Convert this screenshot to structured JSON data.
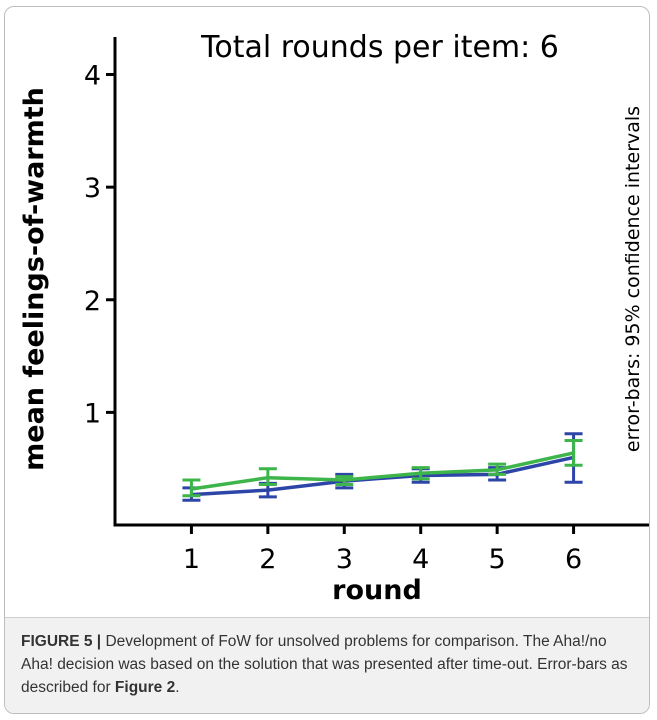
{
  "chart_data": {
    "type": "line",
    "annotation": "Total rounds per item: 6",
    "side_note": "error-bars: 95% confidence intervals",
    "xlabel": "round",
    "ylabel": "mean feelings-of-warmth",
    "x": [
      1,
      2,
      3,
      4,
      5,
      6
    ],
    "x_ticks": [
      "1",
      "2",
      "3",
      "4",
      "5",
      "6"
    ],
    "y_ticks": [
      "1",
      "2",
      "3",
      "4"
    ],
    "ylim": [
      0,
      4.2
    ],
    "xlim": [
      0,
      7
    ],
    "grid": false,
    "series": [
      {
        "color": "#2e45a8",
        "values": [
          0.27,
          0.31,
          0.39,
          0.44,
          0.45,
          0.6
        ],
        "ci_low": [
          0.22,
          0.25,
          0.33,
          0.38,
          0.4,
          0.38
        ],
        "ci_high": [
          0.33,
          0.37,
          0.45,
          0.5,
          0.51,
          0.81
        ]
      },
      {
        "color": "#3db54a",
        "values": [
          0.32,
          0.42,
          0.4,
          0.46,
          0.49,
          0.64
        ],
        "ci_low": [
          0.26,
          0.36,
          0.36,
          0.41,
          0.45,
          0.53
        ],
        "ci_high": [
          0.4,
          0.5,
          0.43,
          0.51,
          0.54,
          0.75
        ]
      }
    ]
  },
  "caption": {
    "label": "FIGURE 5 |",
    "text": " Development of FoW for unsolved problems for comparison. The Aha!/no Aha! decision was based on the solution that was presented after time-out. Error-bars as described for ",
    "ref": "Figure 2",
    "end": "."
  }
}
